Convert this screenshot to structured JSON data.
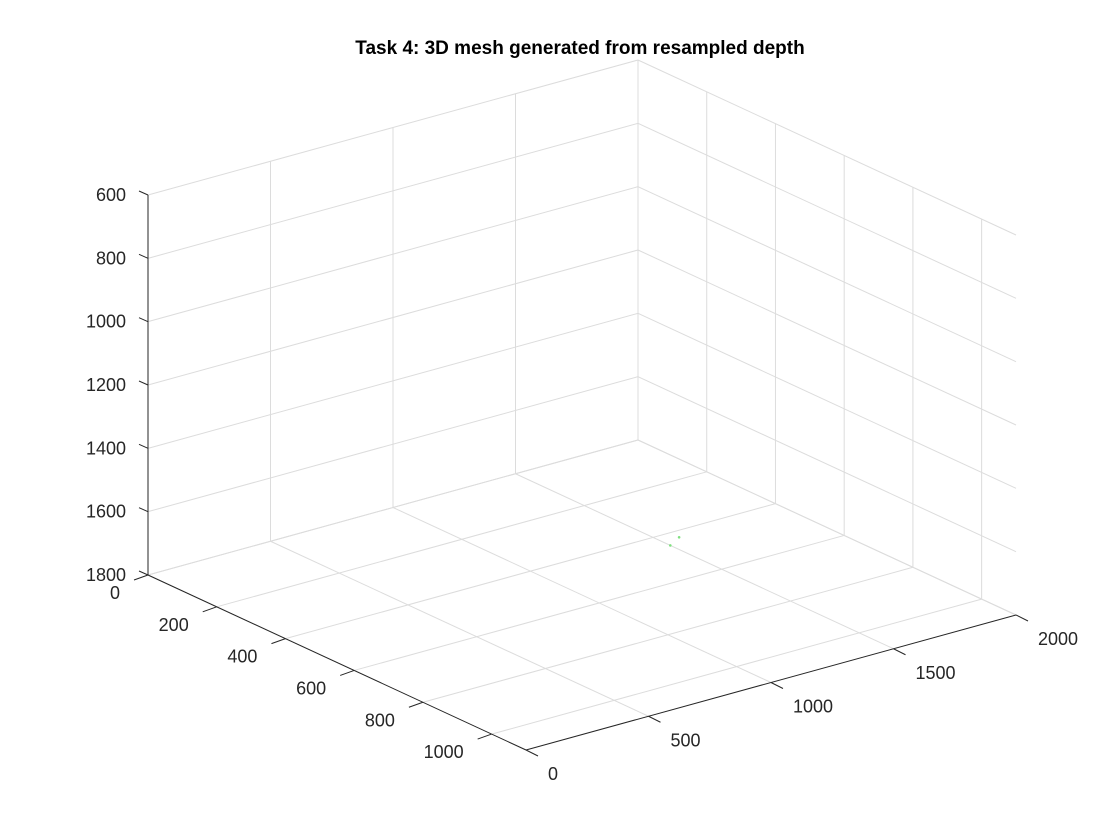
{
  "chart_data": {
    "type": "surface3d",
    "title": "Task 4: 3D mesh generated from resampled depth",
    "xlabel": "",
    "ylabel": "",
    "zlabel": "",
    "x_axis": {
      "ticks": [
        0,
        200,
        400,
        600,
        800,
        1000
      ],
      "labels": [
        "0",
        "200",
        "400",
        "600",
        "800",
        "1000"
      ],
      "lim": [
        0,
        1100
      ]
    },
    "y_axis": {
      "ticks": [
        0,
        500,
        1000,
        1500,
        2000
      ],
      "labels": [
        "0",
        "500",
        "1000",
        "1500",
        "2000"
      ],
      "lim": [
        0,
        2000
      ]
    },
    "z_axis": {
      "ticks": [
        600,
        800,
        1000,
        1200,
        1400,
        1600,
        1800
      ],
      "labels": [
        "600",
        "800",
        "1000",
        "1200",
        "1400",
        "1600",
        "1800"
      ],
      "lim": [
        600,
        1800
      ],
      "direction": "reverse"
    },
    "grid": true,
    "legend": "none",
    "mesh_visible_points": [
      {
        "x": 700,
        "y": 1150,
        "z": 1600
      },
      {
        "x": 690,
        "y": 1200,
        "z": 1590
      }
    ],
    "mesh_color": "#7fe07f",
    "axis_color": "#262626",
    "grid_color": "#dcdcdc"
  }
}
